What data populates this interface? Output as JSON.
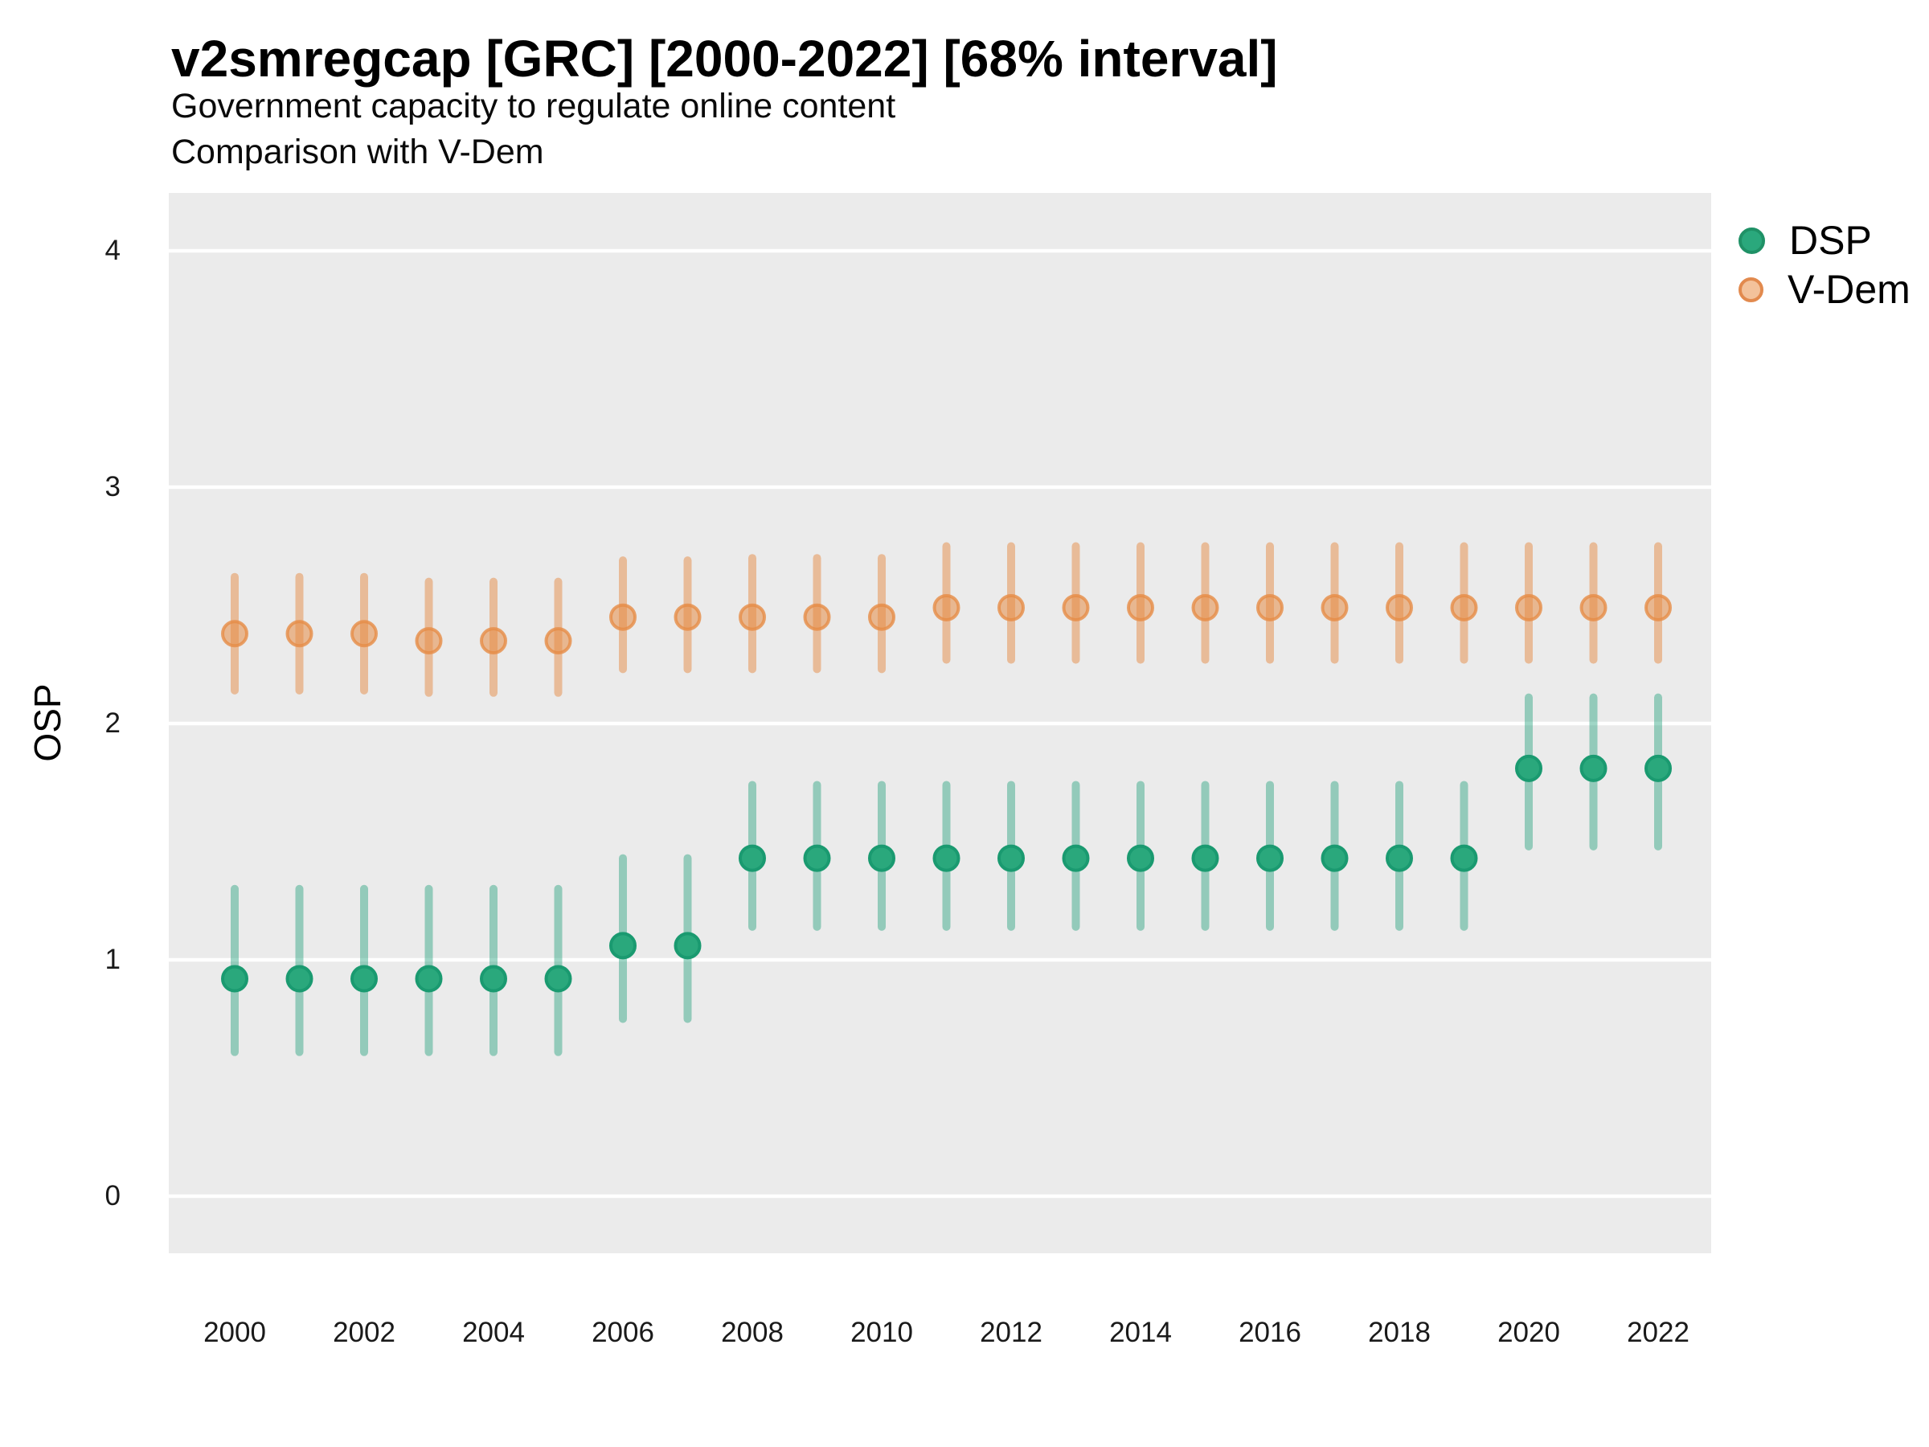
{
  "header": {
    "title": "v2smregcap [GRC] [2000-2022] [68% interval]",
    "subtitle_line1": "Government capacity to regulate online content",
    "subtitle_line2": "Comparison with V-Dem"
  },
  "y_axis": {
    "label": "OSP",
    "ticks": [
      0,
      1,
      2,
      3,
      4
    ]
  },
  "x_axis": {
    "ticks": [
      2000,
      2002,
      2004,
      2006,
      2008,
      2010,
      2012,
      2014,
      2016,
      2018,
      2020,
      2022
    ]
  },
  "legend": {
    "items": [
      {
        "label": "DSP",
        "marker_fill": "#2aa87c",
        "marker_stroke": "#1f9166",
        "marker_size": 33
      },
      {
        "label": "V-Dem",
        "marker_fill": "#f3c29b",
        "marker_stroke": "#e28a4e",
        "marker_size": 31
      }
    ]
  },
  "colors": {
    "panel_background": "#ebebeb",
    "gridline": "#ffffff",
    "dsp_point_fill": "#2aa87c",
    "dsp_point_stroke": "#1a9a70",
    "dsp_bar": "rgba(27,158,119,0.42)",
    "vdem_point_fill": "rgba(230,140,70,0.55)",
    "vdem_point_stroke": "rgba(230,140,70,0.80)",
    "vdem_bar": "rgba(230,140,70,0.50)"
  },
  "chart_data": {
    "type": "scatter",
    "variant": "pointrange (dot with 68% credible interval bars)",
    "title": "v2smregcap [GRC] [2000-2022] [68% interval]",
    "subtitle": "Government capacity to regulate online content — Comparison with V-Dem",
    "interval": "68%",
    "xlabel": "",
    "ylabel": "OSP",
    "ylim": [
      -0.25,
      4.25
    ],
    "grid": "horizontal major gridlines only, white on gray panel",
    "legend_position": "right-top",
    "x": [
      2000,
      2001,
      2002,
      2003,
      2004,
      2005,
      2006,
      2007,
      2008,
      2009,
      2010,
      2011,
      2012,
      2013,
      2014,
      2015,
      2016,
      2017,
      2018,
      2019,
      2020,
      2021,
      2022
    ],
    "series": [
      {
        "name": "DSP",
        "values": [
          0.92,
          0.92,
          0.92,
          0.92,
          0.92,
          0.92,
          1.06,
          1.06,
          1.43,
          1.43,
          1.43,
          1.43,
          1.43,
          1.43,
          1.43,
          1.43,
          1.43,
          1.43,
          1.43,
          1.43,
          1.81,
          1.81,
          1.81
        ],
        "lower": [
          0.61,
          0.61,
          0.61,
          0.61,
          0.61,
          0.61,
          0.75,
          0.75,
          1.14,
          1.14,
          1.14,
          1.14,
          1.14,
          1.14,
          1.14,
          1.14,
          1.14,
          1.14,
          1.14,
          1.14,
          1.48,
          1.48,
          1.48
        ],
        "upper": [
          1.3,
          1.3,
          1.3,
          1.3,
          1.3,
          1.3,
          1.43,
          1.43,
          1.74,
          1.74,
          1.74,
          1.74,
          1.74,
          1.74,
          1.74,
          1.74,
          1.74,
          1.74,
          1.74,
          1.74,
          2.11,
          2.11,
          2.11
        ]
      },
      {
        "name": "V-Dem",
        "values": [
          2.38,
          2.38,
          2.38,
          2.35,
          2.35,
          2.35,
          2.45,
          2.45,
          2.45,
          2.45,
          2.45,
          2.49,
          2.49,
          2.49,
          2.49,
          2.49,
          2.49,
          2.49,
          2.49,
          2.49,
          2.49,
          2.49,
          2.49
        ],
        "lower": [
          2.14,
          2.14,
          2.14,
          2.13,
          2.13,
          2.13,
          2.23,
          2.23,
          2.23,
          2.23,
          2.23,
          2.27,
          2.27,
          2.27,
          2.27,
          2.27,
          2.27,
          2.27,
          2.27,
          2.27,
          2.27,
          2.27,
          2.27
        ],
        "upper": [
          2.62,
          2.62,
          2.62,
          2.6,
          2.6,
          2.6,
          2.69,
          2.69,
          2.7,
          2.7,
          2.7,
          2.75,
          2.75,
          2.75,
          2.75,
          2.75,
          2.75,
          2.75,
          2.75,
          2.75,
          2.75,
          2.75,
          2.75
        ]
      }
    ]
  }
}
